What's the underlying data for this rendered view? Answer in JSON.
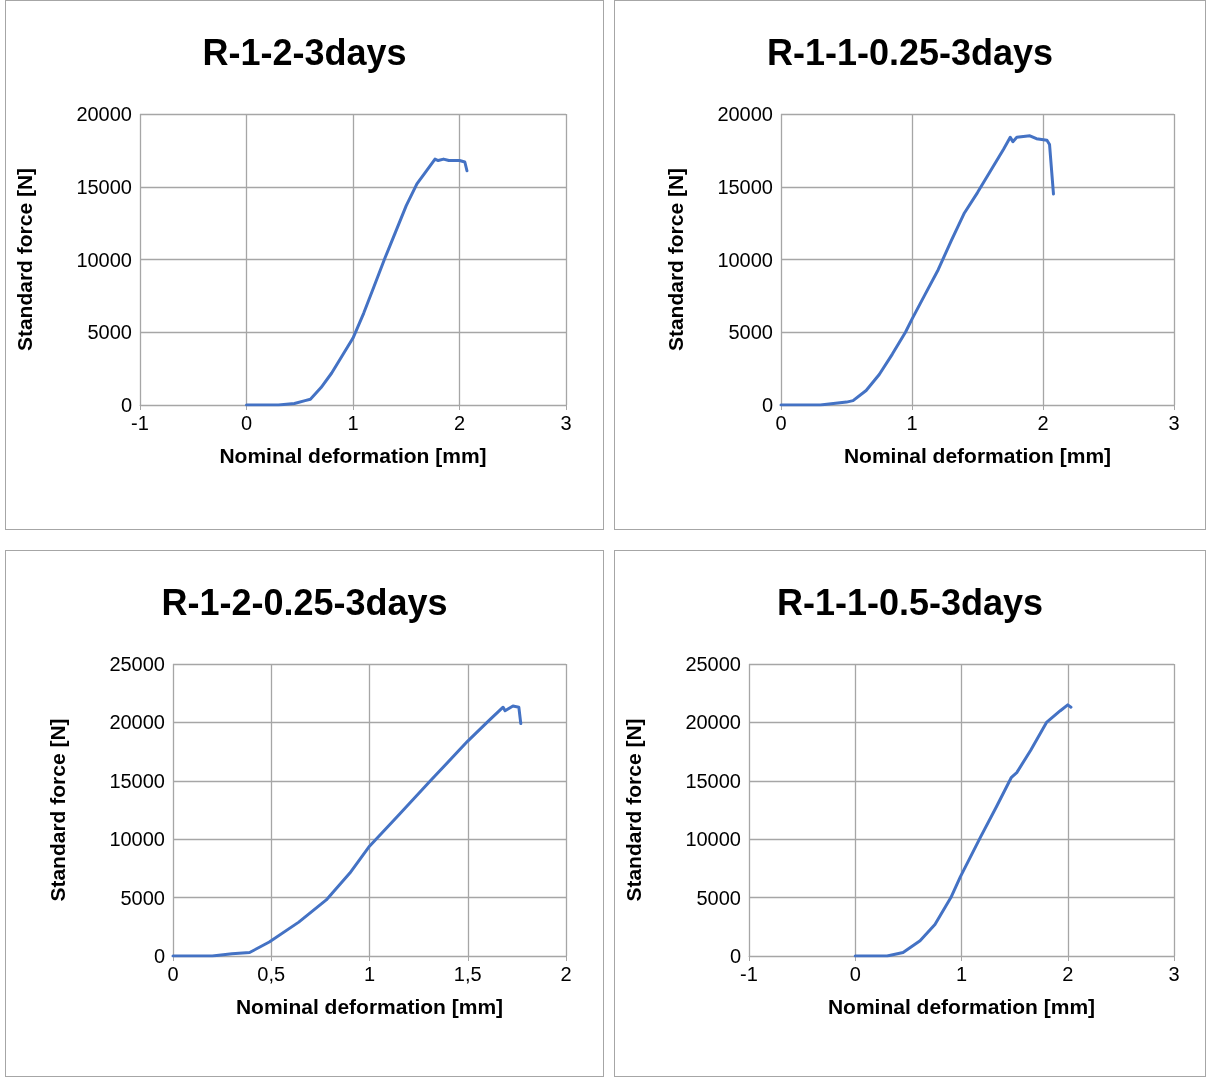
{
  "chart_data": [
    {
      "type": "line",
      "title": "R-1-2-3days",
      "xlabel": "Nominal deformation [mm]",
      "ylabel": "Standard force [N]",
      "xlim": [
        -1,
        3
      ],
      "xticks": [
        -1,
        0,
        1,
        2,
        3
      ],
      "ylim": [
        0,
        20000
      ],
      "yticks": [
        0,
        5000,
        10000,
        15000,
        20000
      ],
      "grid": true,
      "marker": "none",
      "line_style": "solid",
      "series": [
        {
          "color": "#4472c4",
          "x": [
            0,
            0.1,
            0.3,
            0.45,
            0.55,
            0.6,
            0.7,
            0.8,
            0.9,
            1.0,
            1.1,
            1.2,
            1.3,
            1.4,
            1.5,
            1.6,
            1.7,
            1.77,
            1.8,
            1.85,
            1.9,
            2.0,
            2.05,
            2.07
          ],
          "values": [
            0,
            0,
            0,
            100,
            300,
            400,
            1200,
            2200,
            3400,
            4600,
            6300,
            8200,
            10100,
            11900,
            13700,
            15200,
            16200,
            16900,
            16800,
            16900,
            16800,
            16800,
            16700,
            16100
          ]
        }
      ]
    },
    {
      "type": "line",
      "title": "R-1-1-0.25-3days",
      "xlabel": "Nominal deformation [mm]",
      "ylabel": "Standard force [N]",
      "xlim": [
        0,
        3
      ],
      "xticks": [
        0,
        1,
        2,
        3
      ],
      "ylim": [
        0,
        20000
      ],
      "yticks": [
        0,
        5000,
        10000,
        15000,
        20000
      ],
      "grid": true,
      "marker": "none",
      "line_style": "solid",
      "series": [
        {
          "color": "#4472c4",
          "x": [
            0,
            0.3,
            0.5,
            0.55,
            0.65,
            0.75,
            0.85,
            0.95,
            1.0,
            1.1,
            1.2,
            1.3,
            1.4,
            1.5,
            1.6,
            1.7,
            1.75,
            1.77,
            1.8,
            1.9,
            1.95,
            2.03,
            2.05,
            2.08
          ],
          "values": [
            0,
            0,
            200,
            300,
            1000,
            2100,
            3500,
            5000,
            5900,
            7600,
            9300,
            11300,
            13200,
            14600,
            16100,
            17600,
            18400,
            18100,
            18400,
            18500,
            18300,
            18200,
            17900,
            14500
          ]
        }
      ]
    },
    {
      "type": "line",
      "title": "R-1-2-0.25-3days",
      "xlabel": "Nominal deformation [mm]",
      "ylabel": "Standard force [N]",
      "xlim": [
        0,
        2
      ],
      "xticks": [
        0,
        {
          "value": 0.5,
          "label": "0,5"
        },
        1,
        {
          "value": 1.5,
          "label": "1,5"
        },
        2
      ],
      "ylim": [
        0,
        25000
      ],
      "yticks": [
        0,
        5000,
        10000,
        15000,
        20000,
        25000
      ],
      "grid": true,
      "marker": "none",
      "line_style": "solid",
      "series": [
        {
          "color": "#4472c4",
          "x": [
            0,
            0.2,
            0.3,
            0.39,
            0.49,
            0.64,
            0.78,
            0.9,
            1.0,
            1.15,
            1.31,
            1.5,
            1.61,
            1.68,
            1.69,
            1.73,
            1.76,
            1.77
          ],
          "values": [
            0,
            0,
            200,
            300,
            1200,
            2900,
            4800,
            7100,
            9400,
            12100,
            15000,
            18400,
            20200,
            21300,
            21000,
            21400,
            21300,
            19900
          ]
        }
      ]
    },
    {
      "type": "line",
      "title": "R-1-1-0.5-3days",
      "xlabel": "Nominal deformation [mm]",
      "ylabel": "Standard force [N]",
      "xlim": [
        -1,
        3
      ],
      "xticks": [
        -1,
        0,
        1,
        2,
        3
      ],
      "ylim": [
        0,
        25000
      ],
      "yticks": [
        0,
        5000,
        10000,
        15000,
        20000,
        25000
      ],
      "grid": true,
      "marker": "none",
      "line_style": "solid",
      "series": [
        {
          "color": "#4472c4",
          "x": [
            0,
            0.3,
            0.45,
            0.61,
            0.75,
            0.9,
            0.99,
            1.18,
            1.33,
            1.47,
            1.52,
            1.65,
            1.8,
            1.93,
            2.0,
            2.03
          ],
          "values": [
            0,
            0,
            300,
            1300,
            2700,
            5000,
            6800,
            10200,
            12800,
            15300,
            15700,
            17600,
            20000,
            21000,
            21500,
            21300
          ]
        }
      ]
    }
  ]
}
